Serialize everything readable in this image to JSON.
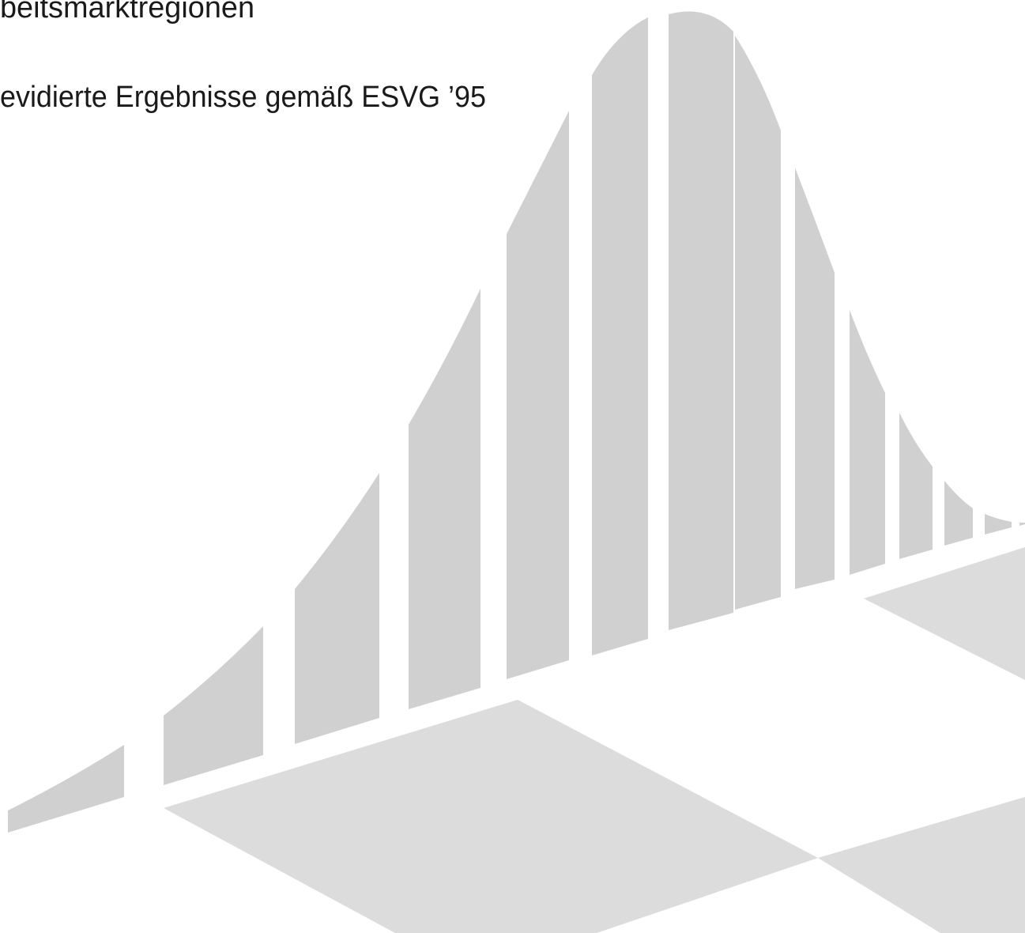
{
  "header": {
    "line1": "beitsmarktregionen",
    "line2": "evidierte Ergebnisse gemäß ESVG ’95"
  }
}
